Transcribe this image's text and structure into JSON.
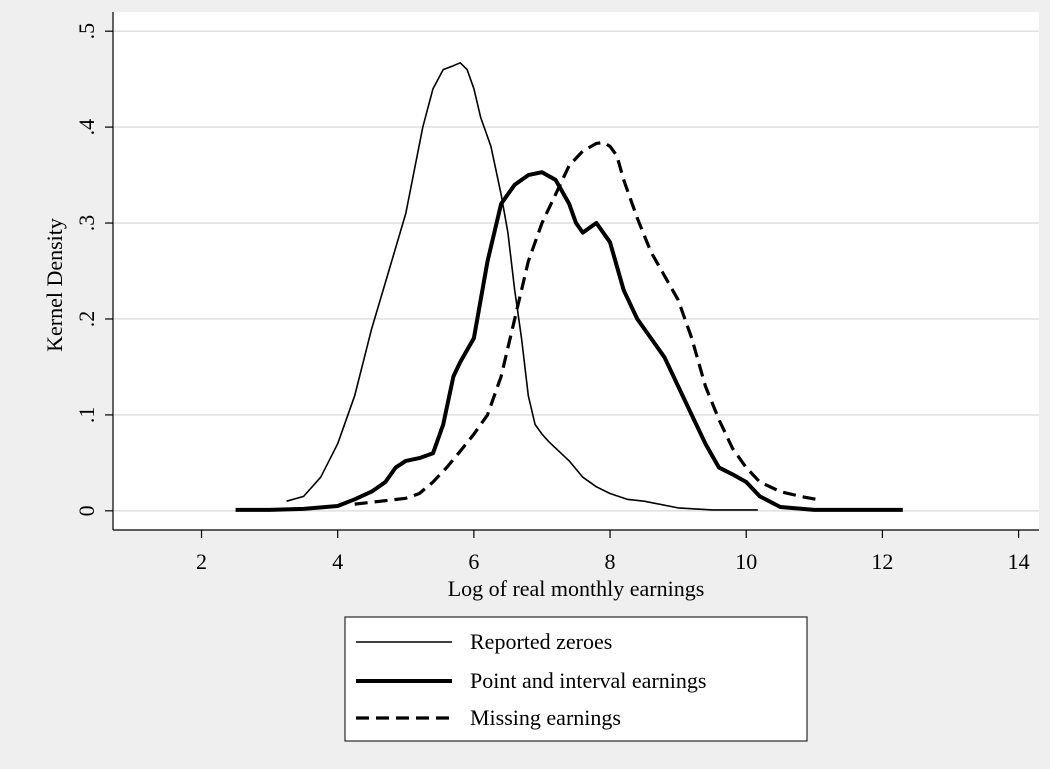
{
  "chart_data": {
    "type": "line",
    "xlabel": "Log of real monthly earnings",
    "ylabel": "Kernel Density",
    "xlim": [
      0.7,
      14.3
    ],
    "ylim": [
      -0.02,
      0.52
    ],
    "xticks": [
      2,
      4,
      6,
      8,
      10,
      12,
      14
    ],
    "xtick_labels": [
      "2",
      "4",
      "6",
      "8",
      "10",
      "12",
      "14"
    ],
    "yticks": [
      0,
      0.1,
      0.2,
      0.3,
      0.4,
      0.5
    ],
    "ytick_labels": [
      "0",
      ".1",
      ".2",
      ".3",
      ".4",
      ".5"
    ],
    "grid": true,
    "legend_position": "bottom-center",
    "background": "#efefef",
    "plot_background": "#ffffff",
    "gridline_color": "#e2e2e2",
    "series": [
      {
        "name": "Reported zeroes",
        "style": "thin-solid",
        "x": [
          3.25,
          3.5,
          3.75,
          4.0,
          4.25,
          4.5,
          4.75,
          5.0,
          5.25,
          5.4,
          5.55,
          5.7,
          5.8,
          5.9,
          6.0,
          6.1,
          6.25,
          6.4,
          6.5,
          6.6,
          6.7,
          6.8,
          6.9,
          7.0,
          7.1,
          7.25,
          7.4,
          7.6,
          7.8,
          8.0,
          8.25,
          8.5,
          9.0,
          9.5,
          10.17
        ],
        "y": [
          0.01,
          0.015,
          0.035,
          0.07,
          0.12,
          0.19,
          0.25,
          0.31,
          0.4,
          0.44,
          0.46,
          0.464,
          0.467,
          0.46,
          0.44,
          0.41,
          0.38,
          0.33,
          0.29,
          0.23,
          0.18,
          0.12,
          0.09,
          0.08,
          0.072,
          0.062,
          0.052,
          0.035,
          0.025,
          0.018,
          0.012,
          0.01,
          0.003,
          0.001,
          0.001
        ]
      },
      {
        "name": "Point and interval earnings",
        "style": "thick-solid",
        "x": [
          2.5,
          3.0,
          3.5,
          4.0,
          4.25,
          4.5,
          4.7,
          4.85,
          5.0,
          5.2,
          5.4,
          5.55,
          5.7,
          5.8,
          6.0,
          6.2,
          6.4,
          6.6,
          6.8,
          7.0,
          7.2,
          7.4,
          7.5,
          7.6,
          7.7,
          7.8,
          8.0,
          8.2,
          8.4,
          8.6,
          8.8,
          9.0,
          9.2,
          9.4,
          9.6,
          9.8,
          10.0,
          10.2,
          10.5,
          11.0,
          11.5,
          12.0,
          12.3
        ],
        "y": [
          0.001,
          0.001,
          0.002,
          0.005,
          0.012,
          0.02,
          0.03,
          0.045,
          0.052,
          0.055,
          0.06,
          0.09,
          0.14,
          0.155,
          0.18,
          0.26,
          0.32,
          0.34,
          0.35,
          0.353,
          0.345,
          0.32,
          0.3,
          0.29,
          0.295,
          0.3,
          0.28,
          0.23,
          0.2,
          0.18,
          0.16,
          0.13,
          0.1,
          0.07,
          0.045,
          0.038,
          0.03,
          0.015,
          0.004,
          0.001,
          0.001,
          0.001,
          0.001
        ]
      },
      {
        "name": "Missing earnings",
        "style": "dashed",
        "x": [
          4.25,
          4.5,
          4.75,
          5.0,
          5.2,
          5.4,
          5.6,
          5.8,
          6.0,
          6.2,
          6.4,
          6.6,
          6.8,
          7.0,
          7.2,
          7.4,
          7.6,
          7.8,
          7.9,
          8.0,
          8.1,
          8.2,
          8.4,
          8.6,
          8.8,
          9.0,
          9.2,
          9.4,
          9.6,
          9.8,
          10.0,
          10.2,
          10.5,
          10.8,
          11.1
        ],
        "y": [
          0.007,
          0.009,
          0.011,
          0.013,
          0.018,
          0.03,
          0.045,
          0.062,
          0.08,
          0.1,
          0.14,
          0.2,
          0.26,
          0.3,
          0.33,
          0.36,
          0.375,
          0.383,
          0.384,
          0.38,
          0.37,
          0.345,
          0.305,
          0.27,
          0.245,
          0.22,
          0.18,
          0.13,
          0.095,
          0.065,
          0.045,
          0.03,
          0.02,
          0.015,
          0.011
        ]
      }
    ]
  }
}
